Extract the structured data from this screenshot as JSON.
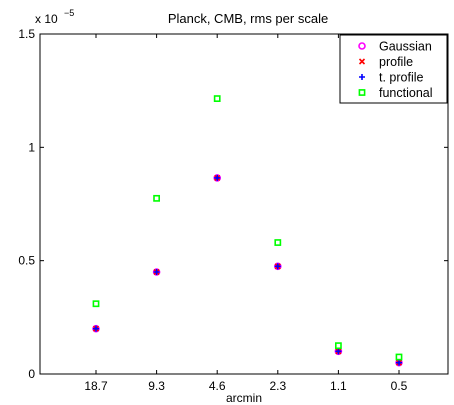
{
  "chart_data": {
    "type": "scatter",
    "title": "Planck, CMB, rms per scale",
    "xlabel": "arcmin",
    "ylabel": "",
    "y_scale_base": "x 10",
    "y_scale_exponent": "−5",
    "categories": [
      "18.7",
      "9.3",
      "4.6",
      "2.3",
      "1.1",
      "0.5"
    ],
    "y_ticks": [
      "0",
      "0.5",
      "1",
      "1.5"
    ],
    "ylim": [
      0,
      1.5
    ],
    "grid": false,
    "legend_position": "top-right",
    "series": [
      {
        "name": "Gaussian",
        "marker": "circle",
        "color": "#ff00ff",
        "values": [
          0.2,
          0.45,
          0.865,
          0.475,
          0.1,
          0.05
        ]
      },
      {
        "name": "profile",
        "marker": "x",
        "color": "#ff0000",
        "values": [
          0.2,
          0.45,
          0.865,
          0.475,
          0.1,
          0.05
        ]
      },
      {
        "name": "t. profile",
        "marker": "plus",
        "color": "#0000ff",
        "values": [
          0.2,
          0.45,
          0.865,
          0.475,
          0.1,
          0.05
        ]
      },
      {
        "name": "functional",
        "marker": "square",
        "color": "#00ff00",
        "values": [
          0.31,
          0.775,
          1.215,
          0.58,
          0.125,
          0.075
        ]
      }
    ]
  }
}
